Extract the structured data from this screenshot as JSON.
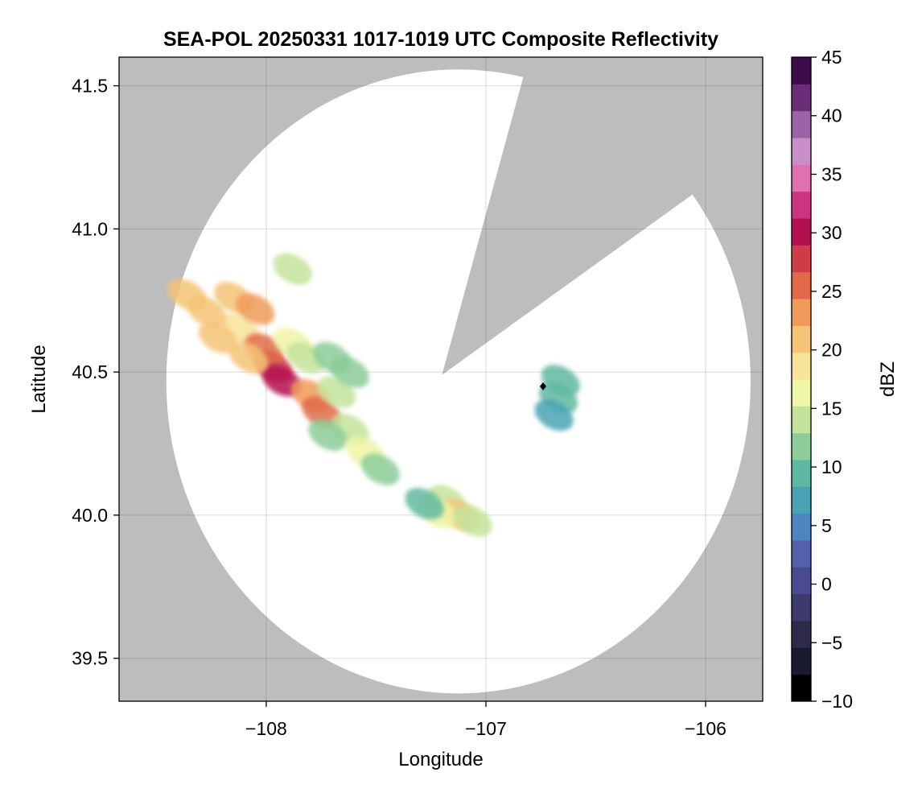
{
  "chart_data": {
    "type": "heatmap",
    "title": "SEA-POL 20250331 1017-1019 UTC Composite Reflectivity",
    "xlabel": "Longitude",
    "ylabel": "Latitude",
    "xlim": [
      -108.67,
      -105.74
    ],
    "ylim": [
      39.35,
      41.6
    ],
    "xticks": [
      -108,
      -107,
      -106
    ],
    "xtick_labels": [
      "−108",
      "−107",
      "−106"
    ],
    "yticks": [
      39.5,
      40.0,
      40.5,
      41.0,
      41.5
    ],
    "ytick_labels": [
      "39.5",
      "40.0",
      "40.5",
      "41.0",
      "41.5"
    ],
    "grid": true,
    "background_color": "#bdbdbd",
    "radar": {
      "center": [
        -107.2,
        40.49
      ],
      "range_edge_points": [
        [
          -108.52,
          40.49
        ],
        [
          -107.2,
          39.38
        ],
        [
          -105.86,
          40.49
        ],
        [
          -107.2,
          41.56
        ]
      ],
      "blocked_sector_points": [
        [
          -107.2,
          40.49
        ],
        [
          -106.83,
          41.53
        ],
        [
          -106.06,
          41.12
        ]
      ],
      "station_marker": [
        -106.74,
        40.45
      ]
    },
    "colorbar": {
      "label": "dBZ",
      "vmin": -10,
      "vmax": 45,
      "ticks": [
        -10,
        -5,
        0,
        5,
        10,
        15,
        20,
        25,
        30,
        35,
        40,
        45
      ],
      "tick_labels": [
        "−10",
        "−5",
        "0",
        "5",
        "10",
        "15",
        "20",
        "25",
        "30",
        "35",
        "40",
        "45"
      ],
      "colors": [
        "#000000",
        "#1a1a2e",
        "#2e2a4a",
        "#3d3a6e",
        "#4a4a92",
        "#5560ad",
        "#4b86c0",
        "#4aa3b5",
        "#5fb8a1",
        "#8ccc98",
        "#c3e39a",
        "#eef5a6",
        "#f8e39a",
        "#f4c376",
        "#f09a5a",
        "#e06a48",
        "#cf3b47",
        "#b3104f",
        "#cc3480",
        "#e070ae",
        "#cb8ec8",
        "#9c64a8",
        "#6b2c78",
        "#3d0a4a"
      ]
    },
    "echo_cells": [
      {
        "lon": -108.12,
        "lat": 40.65,
        "dbz": 19
      },
      {
        "lon": -108.27,
        "lat": 40.71,
        "dbz": 20
      },
      {
        "lon": -108.22,
        "lat": 40.62,
        "dbz": 21
      },
      {
        "lon": -108.15,
        "lat": 40.76,
        "dbz": 20
      },
      {
        "lon": -108.05,
        "lat": 40.72,
        "dbz": 23
      },
      {
        "lon": -107.97,
        "lat": 40.52,
        "dbz": 28
      },
      {
        "lon": -108.01,
        "lat": 40.58,
        "dbz": 25
      },
      {
        "lon": -107.93,
        "lat": 40.47,
        "dbz": 30
      },
      {
        "lon": -108.08,
        "lat": 40.55,
        "dbz": 22
      },
      {
        "lon": -107.88,
        "lat": 40.6,
        "dbz": 16
      },
      {
        "lon": -107.8,
        "lat": 40.42,
        "dbz": 24
      },
      {
        "lon": -107.75,
        "lat": 40.36,
        "dbz": 26
      },
      {
        "lon": -107.68,
        "lat": 40.43,
        "dbz": 13
      },
      {
        "lon": -107.62,
        "lat": 40.3,
        "dbz": 14
      },
      {
        "lon": -107.72,
        "lat": 40.28,
        "dbz": 12
      },
      {
        "lon": -107.55,
        "lat": 40.22,
        "dbz": 16
      },
      {
        "lon": -107.48,
        "lat": 40.16,
        "dbz": 11
      },
      {
        "lon": -107.62,
        "lat": 40.5,
        "dbz": 11
      },
      {
        "lon": -107.82,
        "lat": 40.55,
        "dbz": 14
      },
      {
        "lon": -107.7,
        "lat": 40.55,
        "dbz": 12
      },
      {
        "lon": -107.18,
        "lat": 40.05,
        "dbz": 15
      },
      {
        "lon": -107.12,
        "lat": 40.0,
        "dbz": 20
      },
      {
        "lon": -107.22,
        "lat": 40.01,
        "dbz": 17
      },
      {
        "lon": -107.06,
        "lat": 39.98,
        "dbz": 14
      },
      {
        "lon": -107.28,
        "lat": 40.04,
        "dbz": 10
      },
      {
        "lon": -106.66,
        "lat": 40.47,
        "dbz": 10
      },
      {
        "lon": -106.67,
        "lat": 40.41,
        "dbz": 9
      },
      {
        "lon": -106.69,
        "lat": 40.35,
        "dbz": 8
      },
      {
        "lon": -107.88,
        "lat": 40.86,
        "dbz": 13
      },
      {
        "lon": -108.36,
        "lat": 40.77,
        "dbz": 21
      }
    ]
  }
}
